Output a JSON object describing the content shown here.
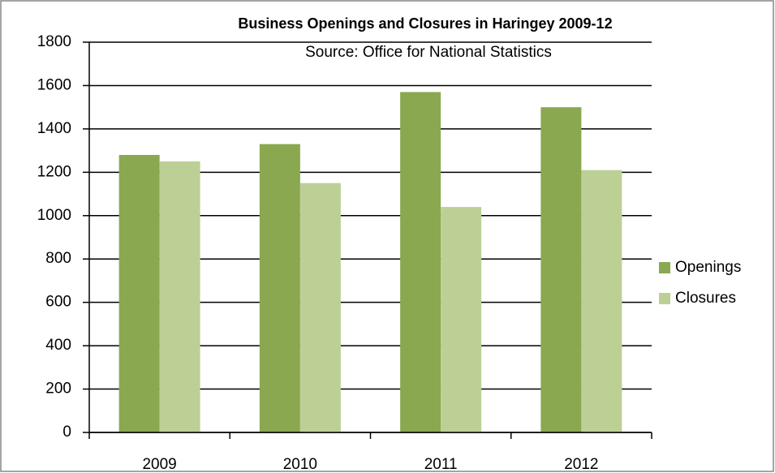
{
  "chart_data": {
    "type": "bar",
    "title": "Business Openings and Closures in Haringey 2009-12",
    "subtitle": "Source: Office for National Statistics",
    "categories": [
      "2009",
      "2010",
      "2011",
      "2012"
    ],
    "series": [
      {
        "name": "Openings",
        "color": "#8aa84f",
        "values": [
          1280,
          1330,
          1570,
          1500
        ]
      },
      {
        "name": "Closures",
        "color": "#bcd096",
        "values": [
          1250,
          1150,
          1040,
          1210
        ]
      }
    ],
    "ylim": [
      0,
      1800
    ],
    "yticks": [
      0,
      200,
      400,
      600,
      800,
      1000,
      1200,
      1400,
      1600,
      1800
    ],
    "grid": true,
    "legend": "right"
  }
}
